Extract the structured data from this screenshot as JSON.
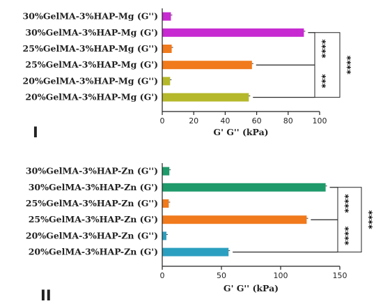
{
  "chart_data": [
    {
      "type": "bar",
      "orientation": "horizontal",
      "panel_label": "I",
      "xlabel": "G' G'' (kPa)",
      "xlim": [
        0,
        100
      ],
      "xticks": [
        "0",
        "20",
        "40",
        "60",
        "80",
        "100"
      ],
      "categories": [
        "30%GelMA-3%HAP-Mg (G'')",
        "30%GelMA-3%HAP-Mg (G')",
        "25%GelMA-3%HAP-Mg (G'')",
        "25%GelMA-3%HAP-Mg (G')",
        "20%GelMA-3%HAP-Mg (G'')",
        "20%GelMA-3%HAP-Mg (G')"
      ],
      "values": [
        5.5,
        90,
        6,
        57,
        5,
        55
      ],
      "colors": [
        "#c62ad0",
        "#c62ad0",
        "#f07a1c",
        "#f07a1c",
        "#b5b82a",
        "#b5b82a"
      ],
      "annotations": [
        {
          "text": "****",
          "between": [
            "30%GelMA-3%HAP-Mg (G')",
            "25%GelMA-3%HAP-Mg (G')"
          ]
        },
        {
          "text": "***",
          "between": [
            "25%GelMA-3%HAP-Mg (G')",
            "20%GelMA-3%HAP-Mg (G')"
          ]
        },
        {
          "text": "****",
          "between": [
            "30%GelMA-3%HAP-Mg (G')",
            "20%GelMA-3%HAP-Mg (G')"
          ]
        }
      ]
    },
    {
      "type": "bar",
      "orientation": "horizontal",
      "panel_label": "II",
      "xlabel": "G' G'' (kPa)",
      "xlim": [
        0,
        150
      ],
      "xticks": [
        "0",
        "50",
        "100",
        "150"
      ],
      "categories": [
        "30%GelMA-3%HAP-Zn (G'')",
        "30%GelMA-3%HAP-Zn (G')",
        "25%GelMA-3%HAP-Zn (G'')",
        "25%GelMA-3%HAP-Zn (G')",
        "20%GelMA-3%HAP-Zn (G'')",
        "20%GelMA-3%HAP-Zn (G')"
      ],
      "values": [
        6,
        138,
        5.5,
        122,
        3.5,
        56
      ],
      "colors": [
        "#1f9a6a",
        "#1f9a6a",
        "#f07a1c",
        "#f07a1c",
        "#2b9fc0",
        "#2b9fc0"
      ],
      "annotations": [
        {
          "text": "****",
          "between": [
            "30%GelMA-3%HAP-Zn (G')",
            "25%GelMA-3%HAP-Zn (G')"
          ]
        },
        {
          "text": "****",
          "between": [
            "25%GelMA-3%HAP-Zn (G')",
            "20%GelMA-3%HAP-Zn (G')"
          ]
        },
        {
          "text": "****",
          "between": [
            "30%GelMA-3%HAP-Zn (G')",
            "20%GelMA-3%HAP-Zn (G')"
          ]
        }
      ]
    }
  ]
}
